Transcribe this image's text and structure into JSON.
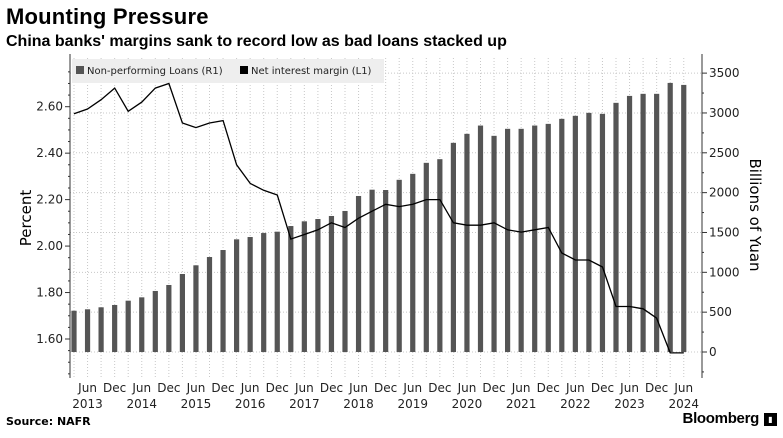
{
  "header": {
    "title": "Mounting Pressure",
    "subtitle": "China banks' margins sank to record low as bad loans stacked up"
  },
  "footer": {
    "source": "Source: NAFR",
    "brand": "Bloomberg"
  },
  "colors": {
    "bars": "#555555",
    "line": "#000000",
    "grid": "#c8c8c8",
    "legend_bg": "#eeeeee"
  },
  "chart_data": {
    "type": "bar+line",
    "title": "Mounting Pressure",
    "subtitle": "China banks' margins sank to record low as bad loans stacked up",
    "x": [
      "Mar 2013",
      "Jun 2013",
      "Sep 2013",
      "Dec 2013",
      "Mar 2014",
      "Jun 2014",
      "Sep 2014",
      "Dec 2014",
      "Mar 2015",
      "Jun 2015",
      "Sep 2015",
      "Dec 2015",
      "Mar 2016",
      "Jun 2016",
      "Sep 2016",
      "Dec 2016",
      "Mar 2017",
      "Jun 2017",
      "Sep 2017",
      "Dec 2017",
      "Mar 2018",
      "Jun 2018",
      "Sep 2018",
      "Dec 2018",
      "Mar 2019",
      "Jun 2019",
      "Sep 2019",
      "Dec 2019",
      "Mar 2020",
      "Jun 2020",
      "Sep 2020",
      "Dec 2020",
      "Mar 2021",
      "Jun 2021",
      "Sep 2021",
      "Dec 2021",
      "Mar 2022",
      "Jun 2022",
      "Sep 2022",
      "Dec 2022",
      "Mar 2023",
      "Jun 2023",
      "Sep 2023",
      "Dec 2023",
      "Mar 2024",
      "Jun 2024"
    ],
    "x_tick_labels": [
      {
        "month": "Jun",
        "year": "2013",
        "index": 1
      },
      {
        "month": "Dec",
        "year": "",
        "index": 3
      },
      {
        "month": "Jun",
        "year": "2014",
        "index": 5
      },
      {
        "month": "Dec",
        "year": "",
        "index": 7
      },
      {
        "month": "Jun",
        "year": "2015",
        "index": 9
      },
      {
        "month": "Dec",
        "year": "",
        "index": 11
      },
      {
        "month": "Jun",
        "year": "2016",
        "index": 13
      },
      {
        "month": "Dec",
        "year": "",
        "index": 15
      },
      {
        "month": "Jun",
        "year": "2017",
        "index": 17
      },
      {
        "month": "Dec",
        "year": "",
        "index": 19
      },
      {
        "month": "Jun",
        "year": "2018",
        "index": 21
      },
      {
        "month": "Dec",
        "year": "",
        "index": 23
      },
      {
        "month": "Jun",
        "year": "2019",
        "index": 25
      },
      {
        "month": "Dec",
        "year": "",
        "index": 27
      },
      {
        "month": "Jun",
        "year": "2020",
        "index": 29
      },
      {
        "month": "Dec",
        "year": "",
        "index": 31
      },
      {
        "month": "Jun",
        "year": "2021",
        "index": 33
      },
      {
        "month": "Dec",
        "year": "",
        "index": 35
      },
      {
        "month": "Jun",
        "year": "2022",
        "index": 37
      },
      {
        "month": "Dec",
        "year": "",
        "index": 39
      },
      {
        "month": "Jun",
        "year": "2023",
        "index": 41
      },
      {
        "month": "Dec",
        "year": "",
        "index": 43
      },
      {
        "month": "Jun",
        "year": "2024",
        "index": 45
      }
    ],
    "series": [
      {
        "name": "Non-performing Loans (R1)",
        "type": "bar",
        "axis": "right",
        "values": [
          518,
          536,
          561,
          590,
          644,
          686,
          766,
          841,
          979,
          1088,
          1192,
          1280,
          1414,
          1443,
          1493,
          1510,
          1581,
          1640,
          1669,
          1707,
          1770,
          1958,
          2037,
          2033,
          2161,
          2236,
          2374,
          2420,
          2625,
          2738,
          2842,
          2713,
          2801,
          2801,
          2842,
          2863,
          2926,
          2964,
          3001,
          2989,
          3127,
          3214,
          3240,
          3240,
          3377,
          3352
        ]
      },
      {
        "name": "Net interest margin (L1)",
        "type": "line",
        "axis": "left",
        "values": [
          2.57,
          2.59,
          2.63,
          2.68,
          2.58,
          2.62,
          2.68,
          2.7,
          2.53,
          2.51,
          2.53,
          2.54,
          2.35,
          2.27,
          2.24,
          2.22,
          2.03,
          2.05,
          2.07,
          2.1,
          2.08,
          2.12,
          2.15,
          2.18,
          2.17,
          2.18,
          2.2,
          2.2,
          2.1,
          2.09,
          2.09,
          2.1,
          2.07,
          2.06,
          2.07,
          2.08,
          1.97,
          1.94,
          1.94,
          1.91,
          1.74,
          1.74,
          1.73,
          1.69,
          1.54,
          1.54
        ]
      }
    ],
    "ylabel": "Percent",
    "ylim": [
      1.43,
      2.8
    ],
    "yticks": [
      "1.60",
      "1.80",
      "2.00",
      "2.20",
      "2.40",
      "2.60"
    ],
    "y2label": "Billions of Yuan",
    "y2lim": [
      -326,
      3664
    ],
    "y2ticks": [
      "0",
      "500",
      "1000",
      "1500",
      "2000",
      "2500",
      "3000",
      "3500"
    ],
    "grid": true,
    "legend_position": "top-left"
  }
}
